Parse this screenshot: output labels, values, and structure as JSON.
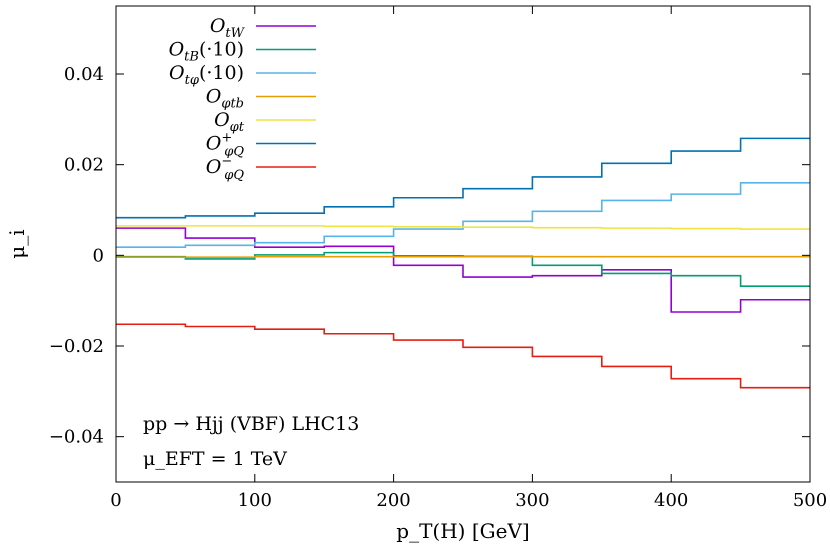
{
  "chart_data": {
    "type": "line",
    "xlabel": "p_T(H) [GeV]",
    "ylabel": "μ_i",
    "xlim": [
      0,
      500
    ],
    "ylim": [
      -0.05,
      0.055
    ],
    "x_ticks": [
      0,
      100,
      200,
      300,
      400,
      500
    ],
    "x_tick_labels": [
      "0",
      "100",
      "200",
      "300",
      "400",
      "500"
    ],
    "y_ticks": [
      -0.04,
      -0.02,
      0,
      0.02,
      0.04
    ],
    "y_tick_labels": [
      "−0.04",
      "−0.02",
      "0",
      "0.02",
      "0.04"
    ],
    "grid": false,
    "legend_position": "top-left",
    "bin_edges": [
      0,
      50,
      100,
      150,
      200,
      250,
      300,
      350,
      400,
      450,
      500
    ],
    "annotations": [
      "pp → Hjj (VBF) LHC13",
      "μ_EFT = 1 TeV"
    ],
    "series": [
      {
        "name": "O_tW",
        "color": "#9400d3",
        "values": [
          0.006,
          0.0038,
          0.0018,
          0.002,
          -0.0022,
          -0.0048,
          -0.0045,
          -0.0032,
          -0.0125,
          -0.0098
        ]
      },
      {
        "name": "O_tB(·10)",
        "color": "#009e73",
        "values": [
          -0.0003,
          -0.0008,
          0.0001,
          0.0006,
          -0.0001,
          -0.0002,
          -0.0022,
          -0.004,
          -0.0045,
          -0.0068
        ]
      },
      {
        "name": "O_tφ(·10)",
        "color": "#56b4e9",
        "values": [
          0.0018,
          0.0022,
          0.0028,
          0.0042,
          0.0058,
          0.0075,
          0.0097,
          0.0121,
          0.0135,
          0.016
        ]
      },
      {
        "name": "O_φtb",
        "color": "#e69f00",
        "values": [
          -0.0004,
          -0.0004,
          -0.0003,
          -0.0003,
          -0.0003,
          -0.0003,
          -0.0003,
          -0.0003,
          -0.0003,
          -0.0003
        ]
      },
      {
        "name": "O_φt",
        "color": "#f0e442",
        "values": [
          0.0065,
          0.0065,
          0.0065,
          0.0064,
          0.0063,
          0.0062,
          0.0061,
          0.006,
          0.0059,
          0.0058
        ]
      },
      {
        "name": "O^+_φQ",
        "color": "#0072b2",
        "values": [
          0.0083,
          0.0087,
          0.0093,
          0.0107,
          0.0127,
          0.0147,
          0.0173,
          0.0203,
          0.023,
          0.0258
        ]
      },
      {
        "name": "O^−_φQ",
        "color": "#e51e10",
        "values": [
          -0.0152,
          -0.0157,
          -0.0163,
          -0.0173,
          -0.0187,
          -0.0203,
          -0.0223,
          -0.0245,
          -0.0272,
          -0.0292
        ]
      }
    ]
  }
}
